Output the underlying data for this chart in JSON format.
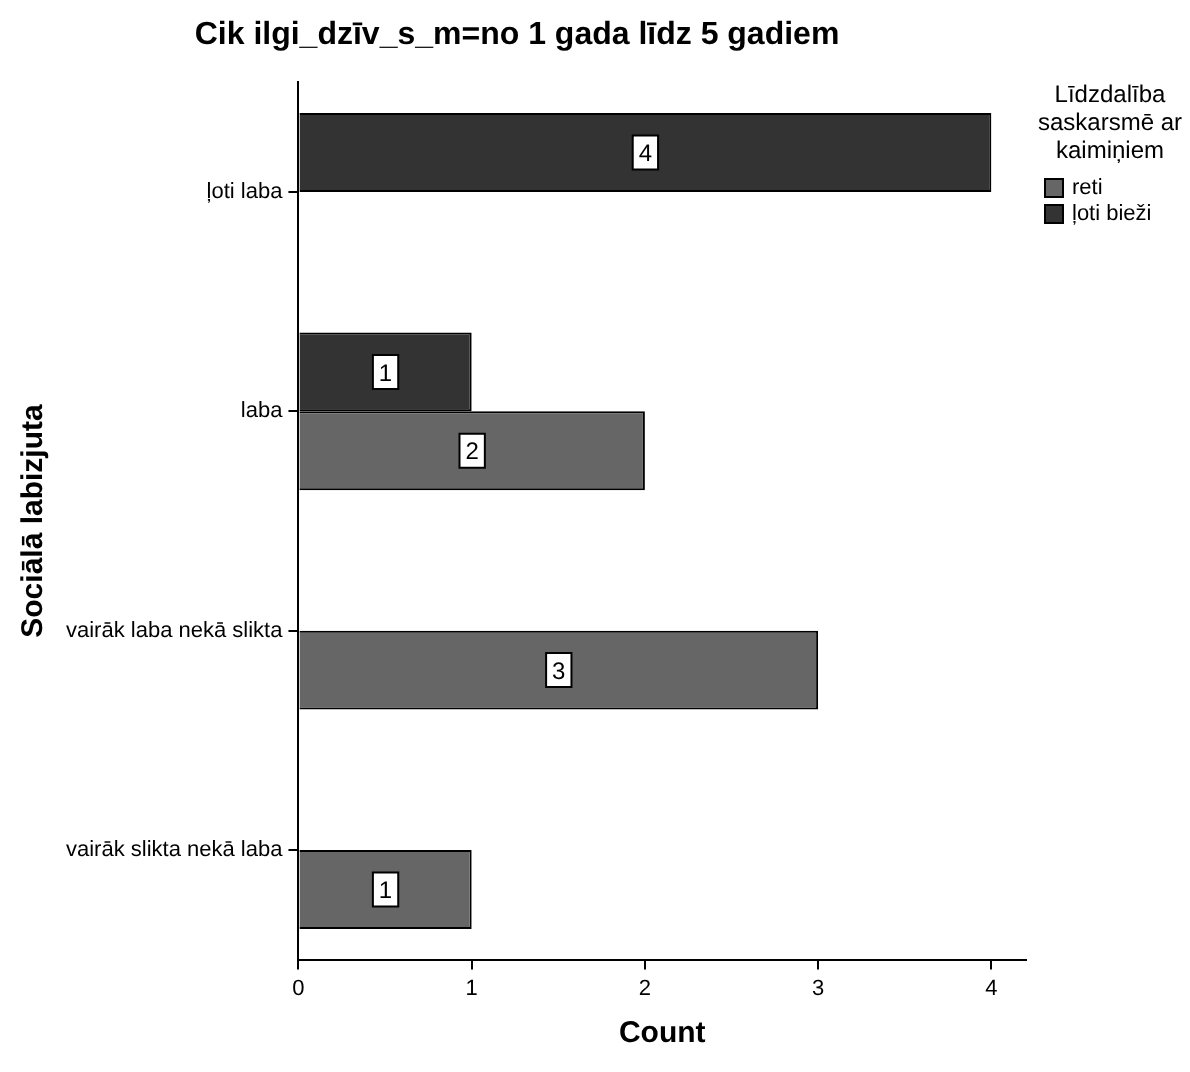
{
  "chart_data": {
    "type": "bar",
    "orientation": "horizontal",
    "title": "Cik ilgi_dzīv_s_m=no 1 gada līdz 5 gadiem",
    "xlabel": "Count",
    "ylabel": "Sociālā labizjuta",
    "legend_title": "Līdzdalība saskarsmē ar kaimiņiem",
    "legend": "top right",
    "grid": false,
    "data_labels": true,
    "categories": [
      "ļoti laba",
      "laba",
      "vairāk laba nekā slikta",
      "vairāk slikta nekā laba"
    ],
    "series": [
      {
        "name": "reti",
        "color": "#666666",
        "values": [
          null,
          2,
          3,
          1
        ]
      },
      {
        "name": "ļoti bieži",
        "color": "#333333",
        "values": [
          4,
          1,
          null,
          null
        ]
      }
    ],
    "xlim": [
      0,
      4.2
    ],
    "xticks": [
      0,
      1,
      2,
      3,
      4
    ]
  }
}
